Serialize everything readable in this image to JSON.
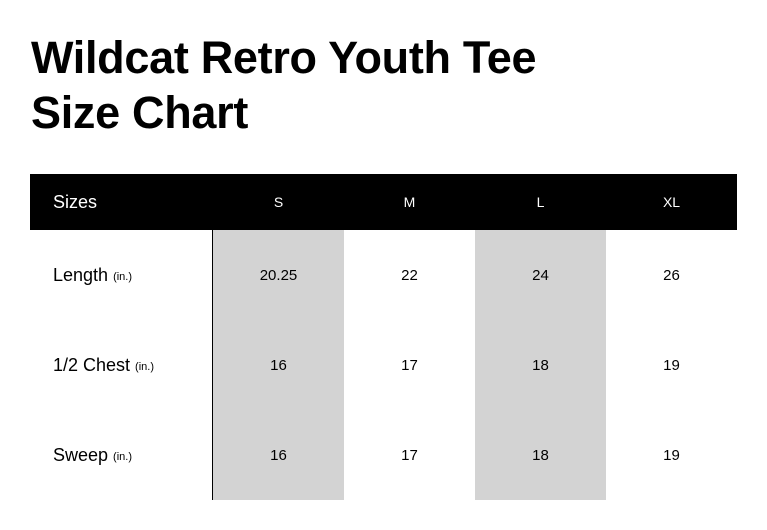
{
  "title_line1": "Wildcat Retro Youth Tee",
  "title_line2": "Size Chart",
  "header": {
    "label": "Sizes",
    "sizes": [
      "S",
      "M",
      "L",
      "XL"
    ]
  },
  "rows": [
    {
      "label": "Length",
      "unit": "(in.)",
      "values": [
        "20.25",
        "22",
        "24",
        "26"
      ]
    },
    {
      "label": "1/2 Chest",
      "unit": "(in.)",
      "values": [
        "16",
        "17",
        "18",
        "19"
      ]
    },
    {
      "label": "Sweep",
      "unit": "(in.)",
      "values": [
        "16",
        "17",
        "18",
        "19"
      ]
    }
  ],
  "colors": {
    "header_bg": "#000000",
    "shaded_column": "#d3d3d3"
  }
}
